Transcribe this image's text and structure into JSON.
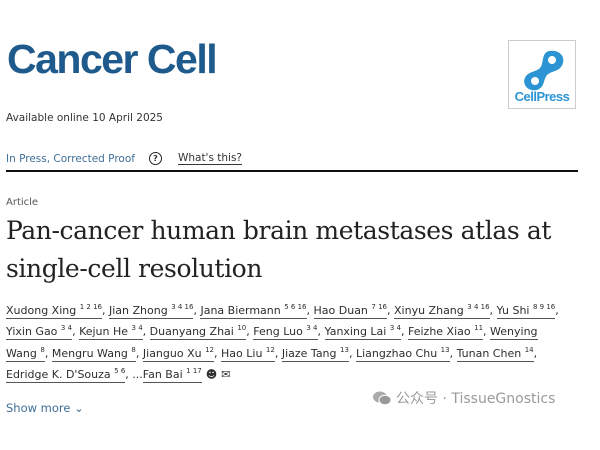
{
  "journal": {
    "name": "Cancer Cell",
    "logo_text": "CellPress",
    "logo_color": "#2d94d4",
    "brand_color": "#1f5a8c"
  },
  "available": "Available online 10 April 2025",
  "nav": {
    "status": "In Press, Corrected Proof",
    "help_icon": "question-circle-icon",
    "whats_this": "What's this?"
  },
  "article": {
    "type": "Article",
    "title": "Pan-cancer human brain metastases atlas at single-cell resolution"
  },
  "authors": [
    {
      "name": "Xudong Xing",
      "sup": "1 2 16"
    },
    {
      "name": "Jian Zhong",
      "sup": "3 4 16"
    },
    {
      "name": "Jana Biermann",
      "sup": "5 6 16"
    },
    {
      "name": "Hao Duan",
      "sup": "7 16"
    },
    {
      "name": "Xinyu Zhang",
      "sup": "3 4 16"
    },
    {
      "name": "Yu Shi",
      "sup": "8 9 16"
    },
    {
      "name": "Yixin Gao",
      "sup": "3 4"
    },
    {
      "name": "Kejun He",
      "sup": "3 4"
    },
    {
      "name": "Duanyang Zhai",
      "sup": "10"
    },
    {
      "name": "Feng Luo",
      "sup": "3 4"
    },
    {
      "name": "Yanxing Lai",
      "sup": "3 4"
    },
    {
      "name": "Feizhe Xiao",
      "sup": "11"
    },
    {
      "name": "Wenying Wang",
      "sup": "8"
    },
    {
      "name": "Mengru Wang",
      "sup": "8"
    },
    {
      "name": "Jianguo Xu",
      "sup": "12"
    },
    {
      "name": "Hao Liu",
      "sup": "12"
    },
    {
      "name": "Jiaze Tang",
      "sup": "13"
    },
    {
      "name": "Liangzhao Chu",
      "sup": "13"
    },
    {
      "name": "Tunan Chen",
      "sup": "14"
    },
    {
      "name": "Edridge K. D'Souza",
      "sup": "5 6"
    },
    {
      "name": "Fan Bai",
      "sup": "1 17"
    }
  ],
  "ellipsis": "...",
  "show_more": "Show more",
  "watermark": "公众号 · TissueGnostics"
}
